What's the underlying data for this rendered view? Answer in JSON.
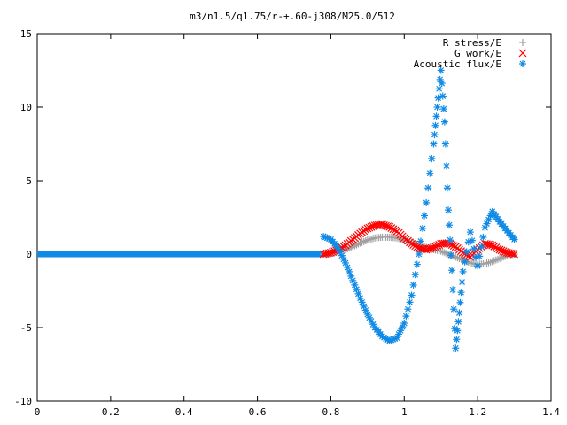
{
  "chart_data": {
    "type": "scatter",
    "title": "m3/n1.5/q1.75/r-+.60-j308/M25.0/512",
    "xlabel": "",
    "ylabel": "",
    "xlim": [
      0,
      1.4
    ],
    "ylim": [
      -10,
      15
    ],
    "xticks": [
      "0",
      "0.2",
      "0.4",
      "0.6",
      "0.8",
      "1",
      "1.2",
      "1.4"
    ],
    "yticks": [
      "-10",
      "-5",
      "0",
      "5",
      "10",
      "15"
    ],
    "grid": false,
    "legend_position": "top-right",
    "series": [
      {
        "name": "R stress/E",
        "marker": "plus",
        "color": "#a0a0a0",
        "x": [
          0.78,
          0.8,
          0.82,
          0.84,
          0.86,
          0.88,
          0.9,
          0.92,
          0.94,
          0.96,
          0.98,
          1.0,
          1.02,
          1.04,
          1.06,
          1.08,
          1.1,
          1.12,
          1.14,
          1.16,
          1.18,
          1.2,
          1.22,
          1.24,
          1.26,
          1.28,
          1.3
        ],
        "y": [
          0.0,
          0.05,
          0.15,
          0.3,
          0.5,
          0.75,
          0.95,
          1.1,
          1.15,
          1.15,
          1.1,
          0.95,
          0.8,
          0.6,
          0.45,
          0.3,
          0.2,
          0.0,
          -0.2,
          -0.4,
          -0.6,
          -0.7,
          -0.65,
          -0.5,
          -0.3,
          -0.1,
          0.0
        ]
      },
      {
        "name": "G work/E",
        "marker": "cross",
        "color": "#ff0000",
        "x": [
          0.78,
          0.8,
          0.82,
          0.84,
          0.86,
          0.88,
          0.9,
          0.92,
          0.94,
          0.96,
          0.98,
          1.0,
          1.02,
          1.04,
          1.06,
          1.08,
          1.1,
          1.12,
          1.14,
          1.16,
          1.18,
          1.2,
          1.22,
          1.24,
          1.26,
          1.28,
          1.3
        ],
        "y": [
          0.0,
          0.1,
          0.3,
          0.6,
          1.0,
          1.4,
          1.75,
          1.95,
          2.0,
          1.85,
          1.55,
          1.1,
          0.7,
          0.4,
          0.3,
          0.45,
          0.7,
          0.75,
          0.5,
          0.1,
          -0.2,
          0.3,
          0.7,
          0.6,
          0.3,
          0.1,
          0.0
        ]
      },
      {
        "name": "Acoustic flux/E",
        "marker": "star",
        "color": "#0f8ae6",
        "x": [
          0.78,
          0.8,
          0.82,
          0.84,
          0.86,
          0.88,
          0.9,
          0.92,
          0.94,
          0.96,
          0.98,
          1.0,
          1.02,
          1.04,
          1.06,
          1.08,
          1.09,
          1.1,
          1.11,
          1.12,
          1.13,
          1.14,
          1.15,
          1.16,
          1.18,
          1.2,
          1.22,
          1.24,
          1.26,
          1.28,
          1.3
        ],
        "y": [
          1.2,
          1.0,
          0.4,
          -0.6,
          -1.8,
          -3.0,
          -4.1,
          -5.0,
          -5.6,
          -5.9,
          -5.7,
          -4.7,
          -2.8,
          0.0,
          3.5,
          7.5,
          10.0,
          12.5,
          9.0,
          3.0,
          -1.1,
          -6.4,
          -4.0,
          -1.2,
          1.5,
          -0.8,
          1.8,
          2.9,
          2.2,
          1.6,
          1.0
        ]
      }
    ]
  }
}
